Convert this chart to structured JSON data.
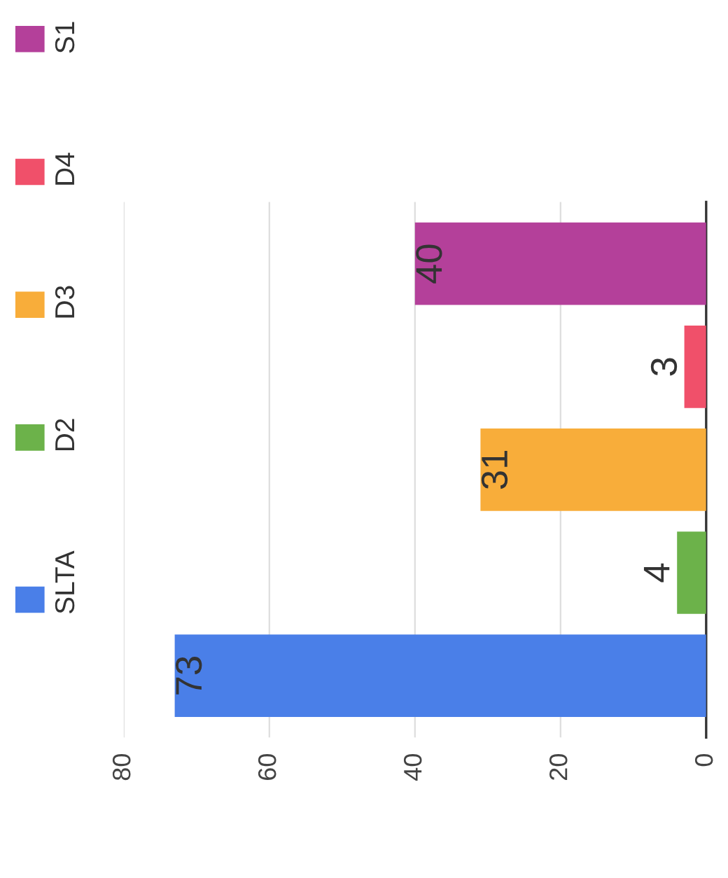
{
  "chart_data": {
    "type": "bar",
    "orientation": "horizontal",
    "categories": [
      null
    ],
    "series": [
      {
        "name": "SLTA",
        "color": "#4a7fe8",
        "values": [
          73
        ]
      },
      {
        "name": "D2",
        "color": "#6cb24a",
        "values": [
          4
        ]
      },
      {
        "name": "D3",
        "color": "#f8ad3a",
        "values": [
          31
        ]
      },
      {
        "name": "D4",
        "color": "#f0506a",
        "values": [
          3
        ]
      },
      {
        "name": "S1",
        "color": "#b4409a",
        "values": [
          40
        ]
      }
    ],
    "xlim": [
      80,
      0
    ],
    "xticks": [
      0,
      20,
      40,
      60,
      80
    ],
    "grid": "x",
    "legend": "left",
    "tick_labels": "x",
    "data_labels": true
  }
}
